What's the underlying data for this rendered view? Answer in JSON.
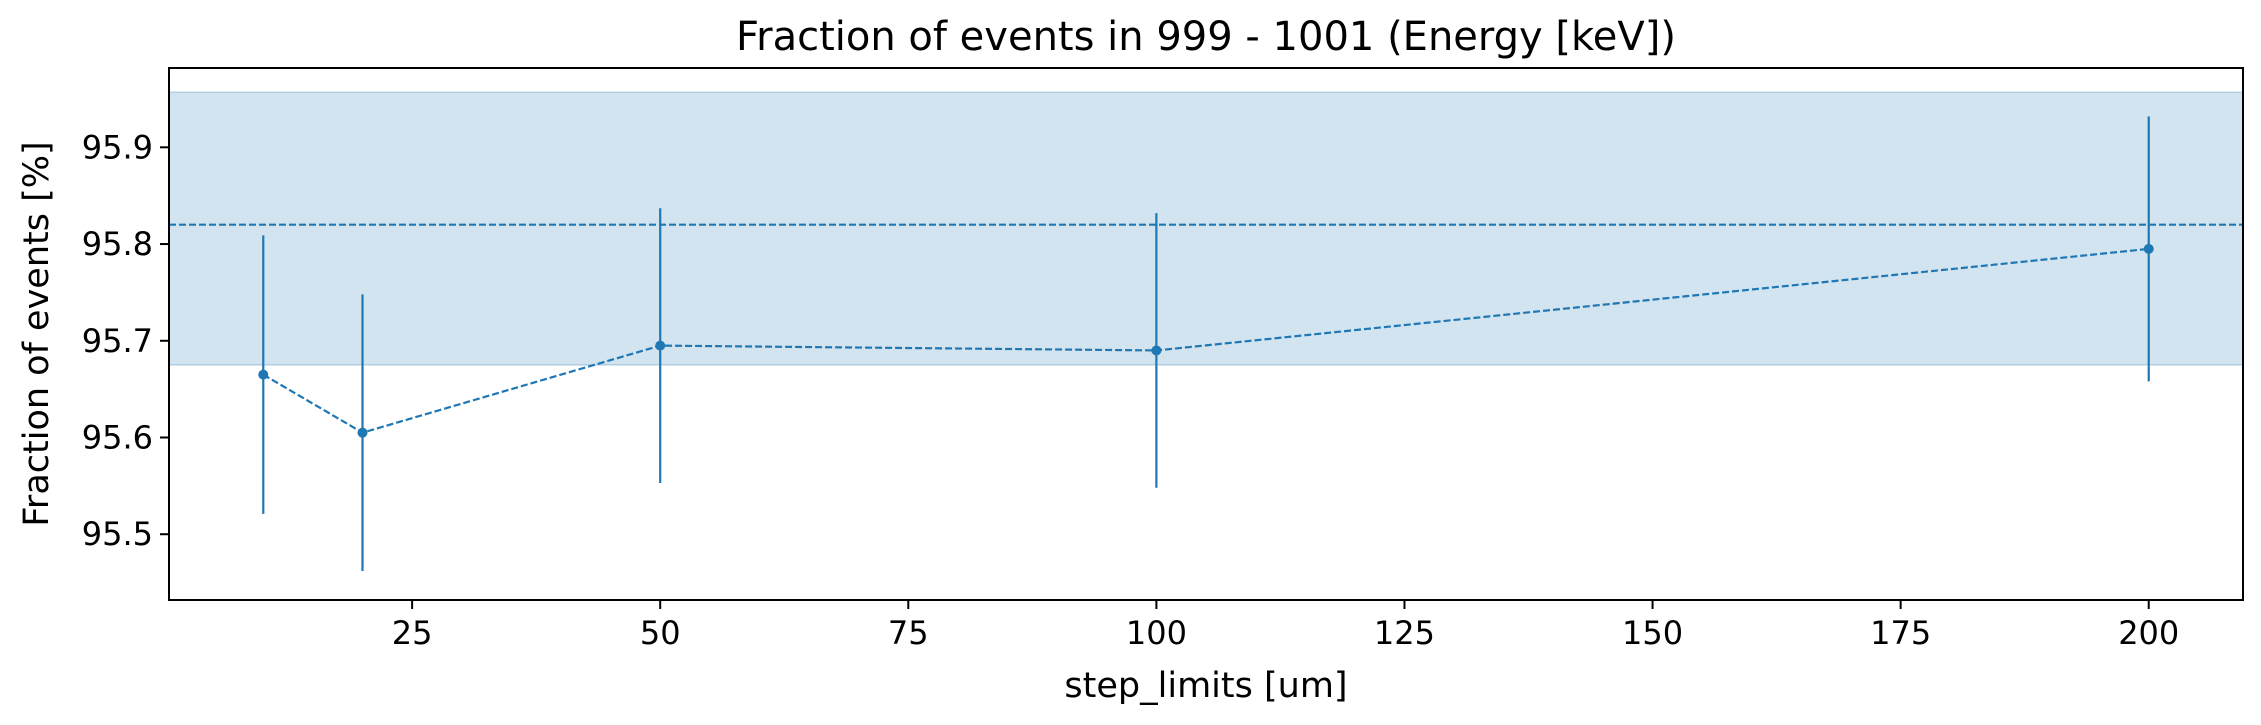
{
  "chart_data": {
    "type": "scatter",
    "title": "Fraction of events in 999 - 1001 (Energy [keV])",
    "xlabel": "step_limits [um]",
    "ylabel": "Fraction of events [%]",
    "xlim": [
      0.5,
      209.5
    ],
    "ylim": [
      95.432,
      95.982
    ],
    "xticks": [
      25,
      50,
      75,
      100,
      125,
      150,
      175,
      200
    ],
    "xtick_labels": [
      "25",
      "50",
      "75",
      "100",
      "125",
      "150",
      "175",
      "200"
    ],
    "yticks": [
      95.5,
      95.6,
      95.7,
      95.8,
      95.9
    ],
    "ytick_labels": [
      "95.5",
      "95.6",
      "95.7",
      "95.8",
      "95.9"
    ],
    "grid": false,
    "color": "#1f77b4",
    "band_color": "#1f77b4",
    "reference": {
      "value": 95.82,
      "band": [
        95.675,
        95.957
      ],
      "style": "dashed"
    },
    "series": [
      {
        "x": [
          10,
          20,
          50,
          100,
          200
        ],
        "y": [
          95.665,
          95.605,
          95.695,
          95.69,
          95.795
        ],
        "yerr": [
          0.144,
          0.143,
          0.142,
          0.142,
          0.137
        ],
        "line_style": "dashed"
      }
    ]
  }
}
